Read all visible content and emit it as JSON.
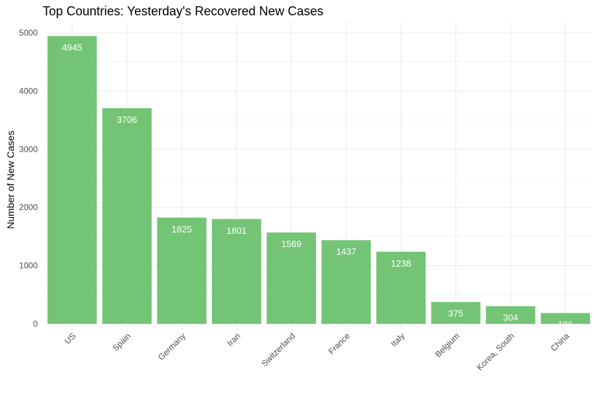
{
  "chart_data": {
    "type": "bar",
    "title": "Top Countries: Yesterday's Recovered New Cases",
    "xlabel": "",
    "ylabel": "Number of New Cases",
    "categories": [
      "US",
      "Spain",
      "Germany",
      "Iran",
      "Switzerland",
      "France",
      "Italy",
      "Belgium",
      "Korea, South",
      "China"
    ],
    "values": [
      4945,
      3706,
      1825,
      1801,
      1569,
      1437,
      1238,
      375,
      304,
      186
    ],
    "ylim": [
      0,
      5000
    ],
    "y_ticks": [
      0,
      1000,
      2000,
      3000,
      4000,
      5000
    ],
    "grid": true,
    "legend": "none",
    "bar_color": "#74c476",
    "label_color": "#ffffff",
    "grid_color": "#ebebeb",
    "x_tick_rotation_deg": -45
  }
}
